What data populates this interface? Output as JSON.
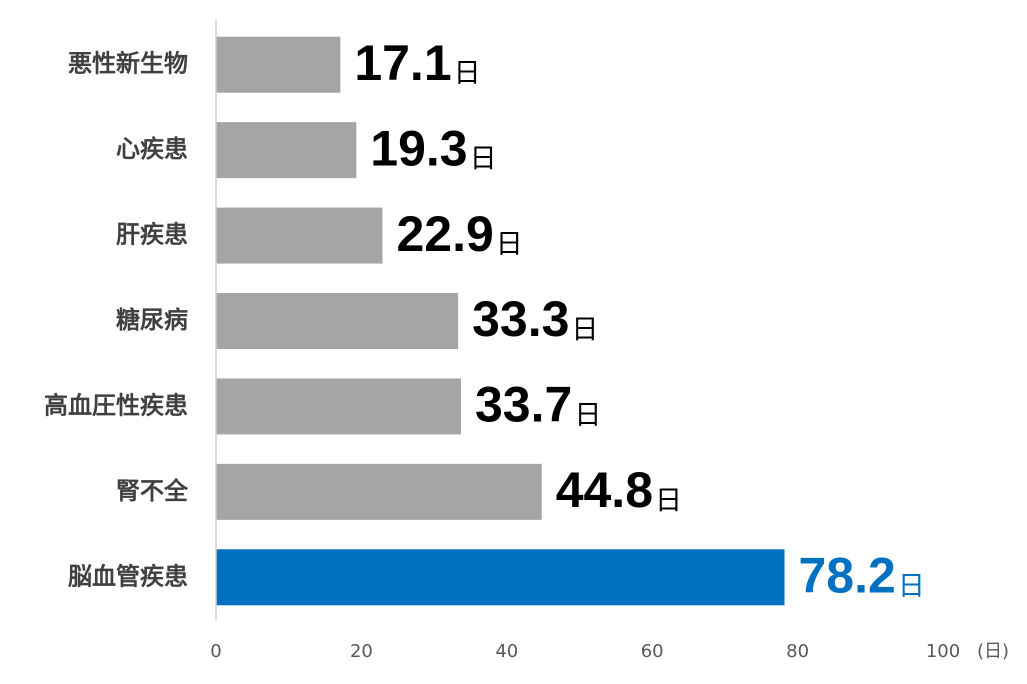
{
  "chart_data": {
    "type": "bar",
    "orientation": "horizontal",
    "categories": [
      "悪性新生物",
      "心疾患",
      "肝疾患",
      "糖尿病",
      "高血圧性疾患",
      "腎不全",
      "脳血管疾患"
    ],
    "values": [
      17.1,
      19.3,
      22.9,
      33.3,
      33.7,
      44.8,
      78.2
    ],
    "value_unit": "日",
    "colors": [
      "#a5a5a5",
      "#a5a5a5",
      "#a5a5a5",
      "#a5a5a5",
      "#a5a5a5",
      "#a5a5a5",
      "#0070c0"
    ],
    "label_colors": [
      "#000000",
      "#000000",
      "#000000",
      "#000000",
      "#000000",
      "#000000",
      "#0070c0"
    ],
    "xlim": [
      0,
      100
    ],
    "xticks": [
      0,
      20,
      40,
      60,
      80,
      100
    ],
    "x_label": "(日)",
    "grid": false
  }
}
